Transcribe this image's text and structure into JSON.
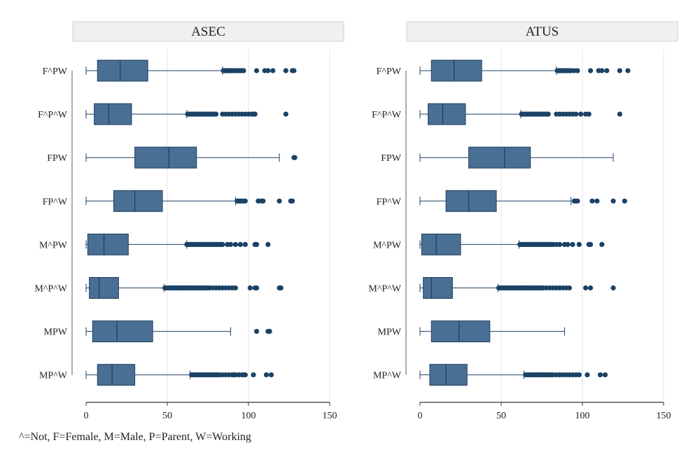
{
  "footnote": "^=Not, F=Female, M=Male, P=Parent, W=Working",
  "colors": {
    "box_fill": "#4a6f95",
    "box_stroke": "#1f3f60",
    "outlier": "#1a4266",
    "whisker": "#1f3f60",
    "grid": "#e6e6e6",
    "header_bg": "#f0f0f0",
    "header_border": "#d0d0d0",
    "axis": "#333333",
    "text": "#222222"
  },
  "chart_data": [
    {
      "type": "boxplot",
      "orientation": "horizontal",
      "title": "ASEC",
      "xlim": [
        0,
        150
      ],
      "xticks": [
        0,
        50,
        100,
        150
      ],
      "xlabel": "",
      "ylabel": "",
      "grid": true,
      "categories": [
        "F^PW",
        "F^P^W",
        "FPW",
        "FP^W",
        "M^PW",
        "M^P^W",
        "MPW",
        "MP^W"
      ],
      "boxes": [
        {
          "label": "F^PW",
          "whisker_low": 0,
          "q1": 7,
          "median": 21,
          "q3": 38,
          "whisker_high": 84,
          "outliers": [
            84.5,
            85,
            85.5,
            86,
            86.5,
            87,
            87.5,
            88,
            88.5,
            89,
            89.5,
            90,
            91,
            92,
            93,
            94,
            95,
            96,
            97,
            105,
            110,
            112,
            115,
            123,
            127,
            128
          ]
        },
        {
          "label": "F^P^W",
          "whisker_low": 0,
          "q1": 5,
          "median": 14,
          "q3": 28,
          "whisker_high": 62,
          "outliers": [
            62.5,
            63,
            64,
            65,
            66,
            67,
            68,
            69,
            70,
            71,
            72,
            73,
            74,
            75,
            76,
            77,
            78,
            79,
            80,
            84,
            86,
            88,
            90,
            92,
            94,
            96,
            98,
            100,
            102,
            103,
            104,
            123
          ]
        },
        {
          "label": "FPW",
          "whisker_low": 0,
          "q1": 30,
          "median": 51,
          "q3": 68,
          "whisker_high": 119,
          "outliers": [
            128,
            128.5
          ]
        },
        {
          "label": "FP^W",
          "whisker_low": 0,
          "q1": 17,
          "median": 30,
          "q3": 47,
          "whisker_high": 92,
          "outliers": [
            93,
            94,
            95,
            96,
            97,
            98,
            106,
            108,
            109,
            119,
            126,
            127
          ]
        },
        {
          "label": "M^PW",
          "whisker_low": 0,
          "q1": 1,
          "median": 11,
          "q3": 26,
          "whisker_high": 62,
          "outliers": [
            62,
            63,
            64,
            65,
            66,
            67,
            68,
            69,
            70,
            71,
            72,
            73,
            74,
            75,
            76,
            77,
            78,
            79,
            80,
            81,
            82,
            83,
            84,
            87,
            89,
            92,
            95,
            98,
            104,
            105,
            112
          ]
        },
        {
          "label": "M^P^W",
          "whisker_low": 0,
          "q1": 2,
          "median": 8,
          "q3": 20,
          "whisker_high": 48,
          "outliers": [
            48.5,
            49,
            50,
            51,
            52,
            53,
            54,
            55,
            56,
            57,
            58,
            59,
            60,
            61,
            62,
            63,
            64,
            65,
            66,
            67,
            68,
            69,
            70,
            71,
            72,
            73,
            74,
            75,
            76,
            78,
            80,
            82,
            84,
            86,
            88,
            90,
            92,
            101,
            104,
            105,
            119,
            120
          ]
        },
        {
          "label": "MPW",
          "whisker_low": 0,
          "q1": 4,
          "median": 19,
          "q3": 41,
          "whisker_high": 89,
          "outliers": [
            105,
            112,
            113
          ]
        },
        {
          "label": "MP^W",
          "whisker_low": 0,
          "q1": 7,
          "median": 16,
          "q3": 30,
          "whisker_high": 64,
          "outliers": [
            65,
            66,
            67,
            68,
            69,
            70,
            71,
            72,
            73,
            74,
            75,
            76,
            77,
            78,
            79,
            80,
            81,
            82,
            84,
            86,
            88,
            90,
            91,
            92,
            94,
            96,
            97,
            98,
            103,
            111,
            114
          ]
        }
      ]
    },
    {
      "type": "boxplot",
      "orientation": "horizontal",
      "title": "ATUS",
      "xlim": [
        0,
        150
      ],
      "xticks": [
        0,
        50,
        100,
        150
      ],
      "xlabel": "",
      "ylabel": "",
      "grid": true,
      "categories": [
        "F^PW",
        "F^P^W",
        "FPW",
        "FP^W",
        "M^PW",
        "M^P^W",
        "MPW",
        "MP^W"
      ],
      "boxes": [
        {
          "label": "F^PW",
          "whisker_low": 0,
          "q1": 7,
          "median": 21,
          "q3": 38,
          "whisker_high": 84,
          "outliers": [
            84.5,
            85,
            85.5,
            86,
            86.5,
            87,
            87.5,
            88,
            89,
            90,
            91,
            92,
            93,
            95,
            97,
            105,
            110,
            112,
            115,
            123,
            128
          ]
        },
        {
          "label": "F^P^W",
          "whisker_low": 0,
          "q1": 5,
          "median": 14,
          "q3": 28,
          "whisker_high": 62,
          "outliers": [
            62.5,
            63,
            64,
            65,
            66,
            67,
            68,
            69,
            70,
            71,
            72,
            73,
            74,
            75,
            76,
            77,
            78,
            79,
            84,
            86,
            88,
            90,
            92,
            94,
            96,
            99,
            102,
            104,
            123
          ]
        },
        {
          "label": "FPW",
          "whisker_low": 0,
          "q1": 30,
          "median": 52,
          "q3": 68,
          "whisker_high": 119,
          "outliers": []
        },
        {
          "label": "FP^W",
          "whisker_low": 0,
          "q1": 16,
          "median": 30,
          "q3": 47,
          "whisker_high": 93,
          "outliers": [
            95,
            96,
            97,
            106,
            109,
            119,
            126
          ]
        },
        {
          "label": "M^PW",
          "whisker_low": 0,
          "q1": 1,
          "median": 10,
          "q3": 25,
          "whisker_high": 61,
          "outliers": [
            61.5,
            62,
            63,
            64,
            65,
            66,
            67,
            68,
            69,
            70,
            71,
            72,
            73,
            74,
            75,
            76,
            77,
            78,
            79,
            80,
            81,
            82,
            84,
            86,
            89,
            91,
            94,
            98,
            104,
            105,
            112
          ]
        },
        {
          "label": "M^P^W",
          "whisker_low": 0,
          "q1": 2,
          "median": 7,
          "q3": 20,
          "whisker_high": 48,
          "outliers": [
            48.5,
            49,
            50,
            51,
            52,
            53,
            54,
            55,
            56,
            57,
            58,
            59,
            60,
            61,
            62,
            63,
            64,
            65,
            66,
            67,
            68,
            69,
            70,
            71,
            72,
            73,
            74,
            75,
            76,
            78,
            80,
            82,
            84,
            86,
            88,
            90,
            92,
            102,
            105,
            119
          ]
        },
        {
          "label": "MPW",
          "whisker_low": 0,
          "q1": 7,
          "median": 24,
          "q3": 43,
          "whisker_high": 89,
          "outliers": []
        },
        {
          "label": "MP^W",
          "whisker_low": 0,
          "q1": 6,
          "median": 16,
          "q3": 29,
          "whisker_high": 64,
          "outliers": [
            65,
            66,
            67,
            68,
            69,
            70,
            71,
            72,
            73,
            74,
            75,
            76,
            77,
            78,
            79,
            80,
            81,
            82,
            84,
            86,
            88,
            90,
            92,
            94,
            96,
            98,
            103,
            111,
            114
          ]
        }
      ]
    }
  ]
}
